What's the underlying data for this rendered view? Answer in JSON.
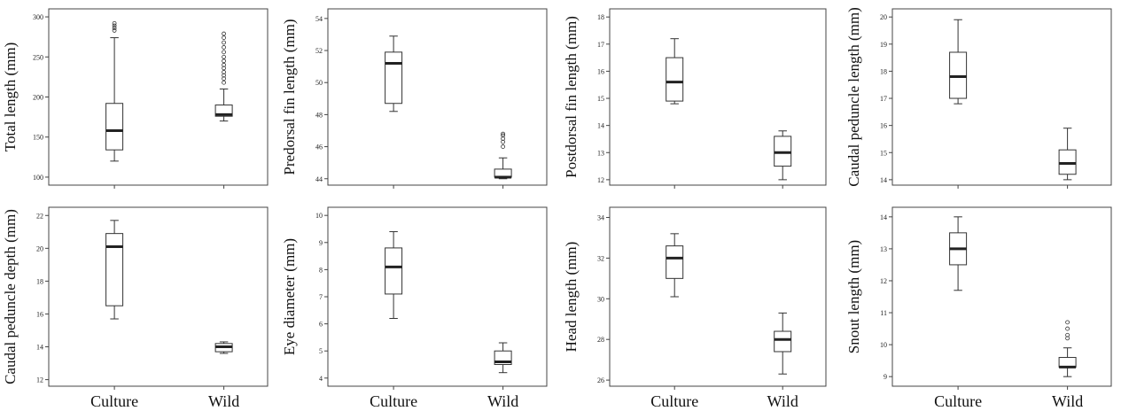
{
  "chart_data": [
    {
      "type": "boxplot",
      "ylabel": "Total length (mm)",
      "categories": [
        "Culture",
        "Wild"
      ],
      "ylim": [
        90,
        310
      ],
      "yticks": [
        100,
        150,
        200,
        250,
        300
      ],
      "boxes": [
        {
          "category": "Culture",
          "min": 120,
          "q1": 134,
          "median": 158,
          "q3": 192,
          "max": 274,
          "outliers": [
            283,
            286,
            289,
            292
          ]
        },
        {
          "category": "Wild",
          "min": 170,
          "q1": 176,
          "median": 178,
          "q3": 190,
          "max": 210,
          "outliers": [
            218,
            223,
            227,
            231,
            236,
            240,
            245,
            250,
            256,
            262,
            268,
            274,
            279
          ]
        }
      ]
    },
    {
      "type": "boxplot",
      "ylabel": "Predorsal fin length (mm)",
      "categories": [
        "Culture",
        "Wild"
      ],
      "ylim": [
        43.6,
        54.6
      ],
      "yticks": [
        44,
        46,
        48,
        50,
        52,
        54
      ],
      "boxes": [
        {
          "category": "Culture",
          "min": 48.2,
          "q1": 48.7,
          "median": 51.2,
          "q3": 51.9,
          "max": 52.9,
          "outliers": []
        },
        {
          "category": "Wild",
          "min": 44.0,
          "q1": 44.1,
          "median": 44.1,
          "q3": 44.6,
          "max": 45.3,
          "outliers": [
            46.0,
            46.3,
            46.5,
            46.7,
            46.8
          ]
        }
      ]
    },
    {
      "type": "boxplot",
      "ylabel": "Postdorsal fin length (mm)",
      "categories": [
        "Culture",
        "Wild"
      ],
      "ylim": [
        11.8,
        18.3
      ],
      "yticks": [
        12,
        13,
        14,
        15,
        16,
        17,
        18
      ],
      "boxes": [
        {
          "category": "Culture",
          "min": 14.8,
          "q1": 14.9,
          "median": 15.6,
          "q3": 16.5,
          "max": 17.2,
          "outliers": []
        },
        {
          "category": "Wild",
          "min": 12.0,
          "q1": 12.5,
          "median": 13.0,
          "q3": 13.6,
          "max": 13.8,
          "outliers": []
        }
      ]
    },
    {
      "type": "boxplot",
      "ylabel": "Caudal peduncle length (mm)",
      "categories": [
        "Culture",
        "Wild"
      ],
      "ylim": [
        13.8,
        20.3
      ],
      "yticks": [
        14,
        15,
        16,
        17,
        18,
        19,
        20
      ],
      "boxes": [
        {
          "category": "Culture",
          "min": 16.8,
          "q1": 17.0,
          "median": 17.8,
          "q3": 18.7,
          "max": 19.9,
          "outliers": []
        },
        {
          "category": "Wild",
          "min": 14.0,
          "q1": 14.2,
          "median": 14.6,
          "q3": 15.1,
          "max": 15.9,
          "outliers": []
        }
      ]
    },
    {
      "type": "boxplot",
      "ylabel": "Caudal peduncle depth (mm)",
      "categories": [
        "Culture",
        "Wild"
      ],
      "ylim": [
        11.6,
        22.5
      ],
      "yticks": [
        12,
        14,
        16,
        18,
        20,
        22
      ],
      "boxes": [
        {
          "category": "Culture",
          "min": 15.7,
          "q1": 16.5,
          "median": 20.1,
          "q3": 20.9,
          "max": 21.7,
          "outliers": []
        },
        {
          "category": "Wild",
          "min": 13.6,
          "q1": 13.7,
          "median": 14.0,
          "q3": 14.2,
          "max": 14.3,
          "outliers": []
        }
      ]
    },
    {
      "type": "boxplot",
      "ylabel": "Eye diameter (mm)",
      "categories": [
        "Culture",
        "Wild"
      ],
      "ylim": [
        3.7,
        10.3
      ],
      "yticks": [
        4,
        5,
        6,
        7,
        8,
        9,
        10
      ],
      "boxes": [
        {
          "category": "Culture",
          "min": 6.2,
          "q1": 7.1,
          "median": 8.1,
          "q3": 8.8,
          "max": 9.4,
          "outliers": []
        },
        {
          "category": "Wild",
          "min": 4.2,
          "q1": 4.5,
          "median": 4.6,
          "q3": 5.0,
          "max": 5.3,
          "outliers": []
        }
      ]
    },
    {
      "type": "boxplot",
      "ylabel": "Head length (mm)",
      "categories": [
        "Culture",
        "Wild"
      ],
      "ylim": [
        25.7,
        34.5
      ],
      "yticks": [
        26,
        28,
        30,
        32,
        34
      ],
      "boxes": [
        {
          "category": "Culture",
          "min": 30.1,
          "q1": 31.0,
          "median": 32.0,
          "q3": 32.6,
          "max": 33.2,
          "outliers": []
        },
        {
          "category": "Wild",
          "min": 26.3,
          "q1": 27.4,
          "median": 28.0,
          "q3": 28.4,
          "max": 29.3,
          "outliers": []
        }
      ]
    },
    {
      "type": "boxplot",
      "ylabel": "Snout length (mm)",
      "categories": [
        "Culture",
        "Wild"
      ],
      "ylim": [
        8.7,
        14.3
      ],
      "yticks": [
        9,
        10,
        11,
        12,
        13,
        14
      ],
      "boxes": [
        {
          "category": "Culture",
          "min": 11.7,
          "q1": 12.5,
          "median": 13.0,
          "q3": 13.5,
          "max": 14.0,
          "outliers": []
        },
        {
          "category": "Wild",
          "min": 9.0,
          "q1": 9.3,
          "median": 9.3,
          "q3": 9.6,
          "max": 9.9,
          "outliers": [
            10.2,
            10.3,
            10.5,
            10.7
          ]
        }
      ]
    }
  ]
}
